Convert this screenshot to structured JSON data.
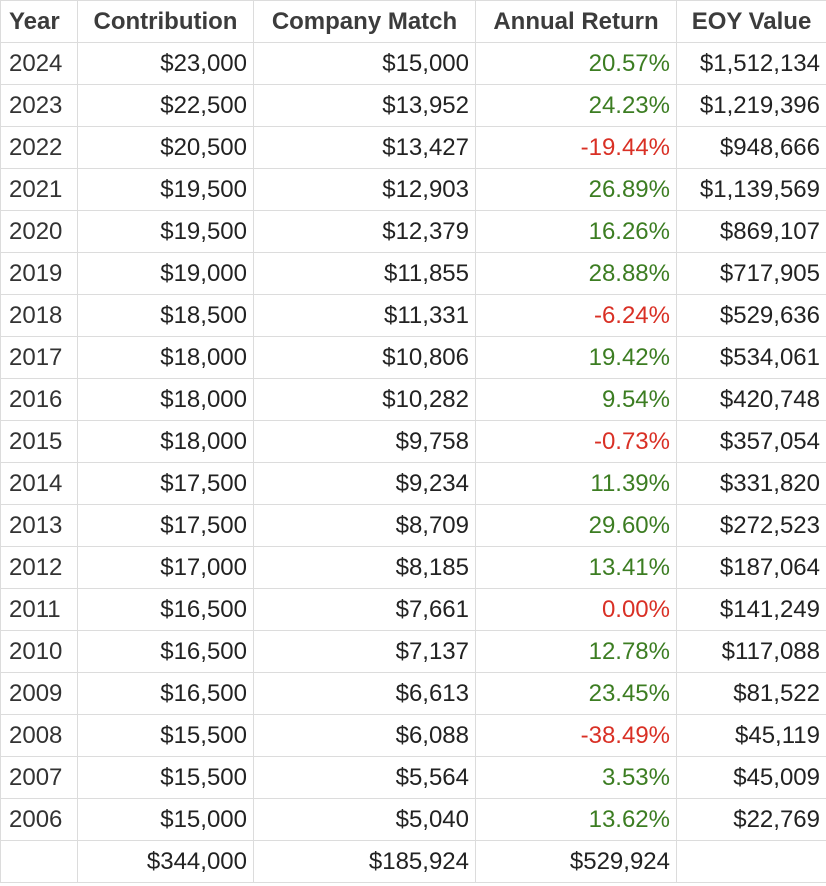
{
  "colors": {
    "positive": "#3c7d22",
    "negative": "#d93025",
    "grid": "#dcdcdc"
  },
  "headers": [
    "Year",
    "Contribution",
    "Company Match",
    "Annual Return",
    "EOY Value"
  ],
  "rows": [
    {
      "year": "2024",
      "contribution": "$23,000",
      "match": "$15,000",
      "return": "20.57%",
      "return_sign": "pos",
      "eoy": "$1,512,134"
    },
    {
      "year": "2023",
      "contribution": "$22,500",
      "match": "$13,952",
      "return": "24.23%",
      "return_sign": "pos",
      "eoy": "$1,219,396"
    },
    {
      "year": "2022",
      "contribution": "$20,500",
      "match": "$13,427",
      "return": "-19.44%",
      "return_sign": "neg",
      "eoy": "$948,666"
    },
    {
      "year": "2021",
      "contribution": "$19,500",
      "match": "$12,903",
      "return": "26.89%",
      "return_sign": "pos",
      "eoy": "$1,139,569"
    },
    {
      "year": "2020",
      "contribution": "$19,500",
      "match": "$12,379",
      "return": "16.26%",
      "return_sign": "pos",
      "eoy": "$869,107"
    },
    {
      "year": "2019",
      "contribution": "$19,000",
      "match": "$11,855",
      "return": "28.88%",
      "return_sign": "pos",
      "eoy": "$717,905"
    },
    {
      "year": "2018",
      "contribution": "$18,500",
      "match": "$11,331",
      "return": "-6.24%",
      "return_sign": "neg",
      "eoy": "$529,636"
    },
    {
      "year": "2017",
      "contribution": "$18,000",
      "match": "$10,806",
      "return": "19.42%",
      "return_sign": "pos",
      "eoy": "$534,061"
    },
    {
      "year": "2016",
      "contribution": "$18,000",
      "match": "$10,282",
      "return": "9.54%",
      "return_sign": "pos",
      "eoy": "$420,748"
    },
    {
      "year": "2015",
      "contribution": "$18,000",
      "match": "$9,758",
      "return": "-0.73%",
      "return_sign": "neg",
      "eoy": "$357,054"
    },
    {
      "year": "2014",
      "contribution": "$17,500",
      "match": "$9,234",
      "return": "11.39%",
      "return_sign": "pos",
      "eoy": "$331,820"
    },
    {
      "year": "2013",
      "contribution": "$17,500",
      "match": "$8,709",
      "return": "29.60%",
      "return_sign": "pos",
      "eoy": "$272,523"
    },
    {
      "year": "2012",
      "contribution": "$17,000",
      "match": "$8,185",
      "return": "13.41%",
      "return_sign": "pos",
      "eoy": "$187,064"
    },
    {
      "year": "2011",
      "contribution": "$16,500",
      "match": "$7,661",
      "return": "0.00%",
      "return_sign": "neg",
      "eoy": "$141,249"
    },
    {
      "year": "2010",
      "contribution": "$16,500",
      "match": "$7,137",
      "return": "12.78%",
      "return_sign": "pos",
      "eoy": "$117,088"
    },
    {
      "year": "2009",
      "contribution": "$16,500",
      "match": "$6,613",
      "return": "23.45%",
      "return_sign": "pos",
      "eoy": "$81,522"
    },
    {
      "year": "2008",
      "contribution": "$15,500",
      "match": "$6,088",
      "return": "-38.49%",
      "return_sign": "neg",
      "eoy": "$45,119"
    },
    {
      "year": "2007",
      "contribution": "$15,500",
      "match": "$5,564",
      "return": "3.53%",
      "return_sign": "pos",
      "eoy": "$45,009"
    },
    {
      "year": "2006",
      "contribution": "$15,000",
      "match": "$5,040",
      "return": "13.62%",
      "return_sign": "pos",
      "eoy": "$22,769"
    }
  ],
  "totals": {
    "year": "",
    "contribution": "$344,000",
    "match": "$185,924",
    "return": "$529,924",
    "eoy": ""
  }
}
